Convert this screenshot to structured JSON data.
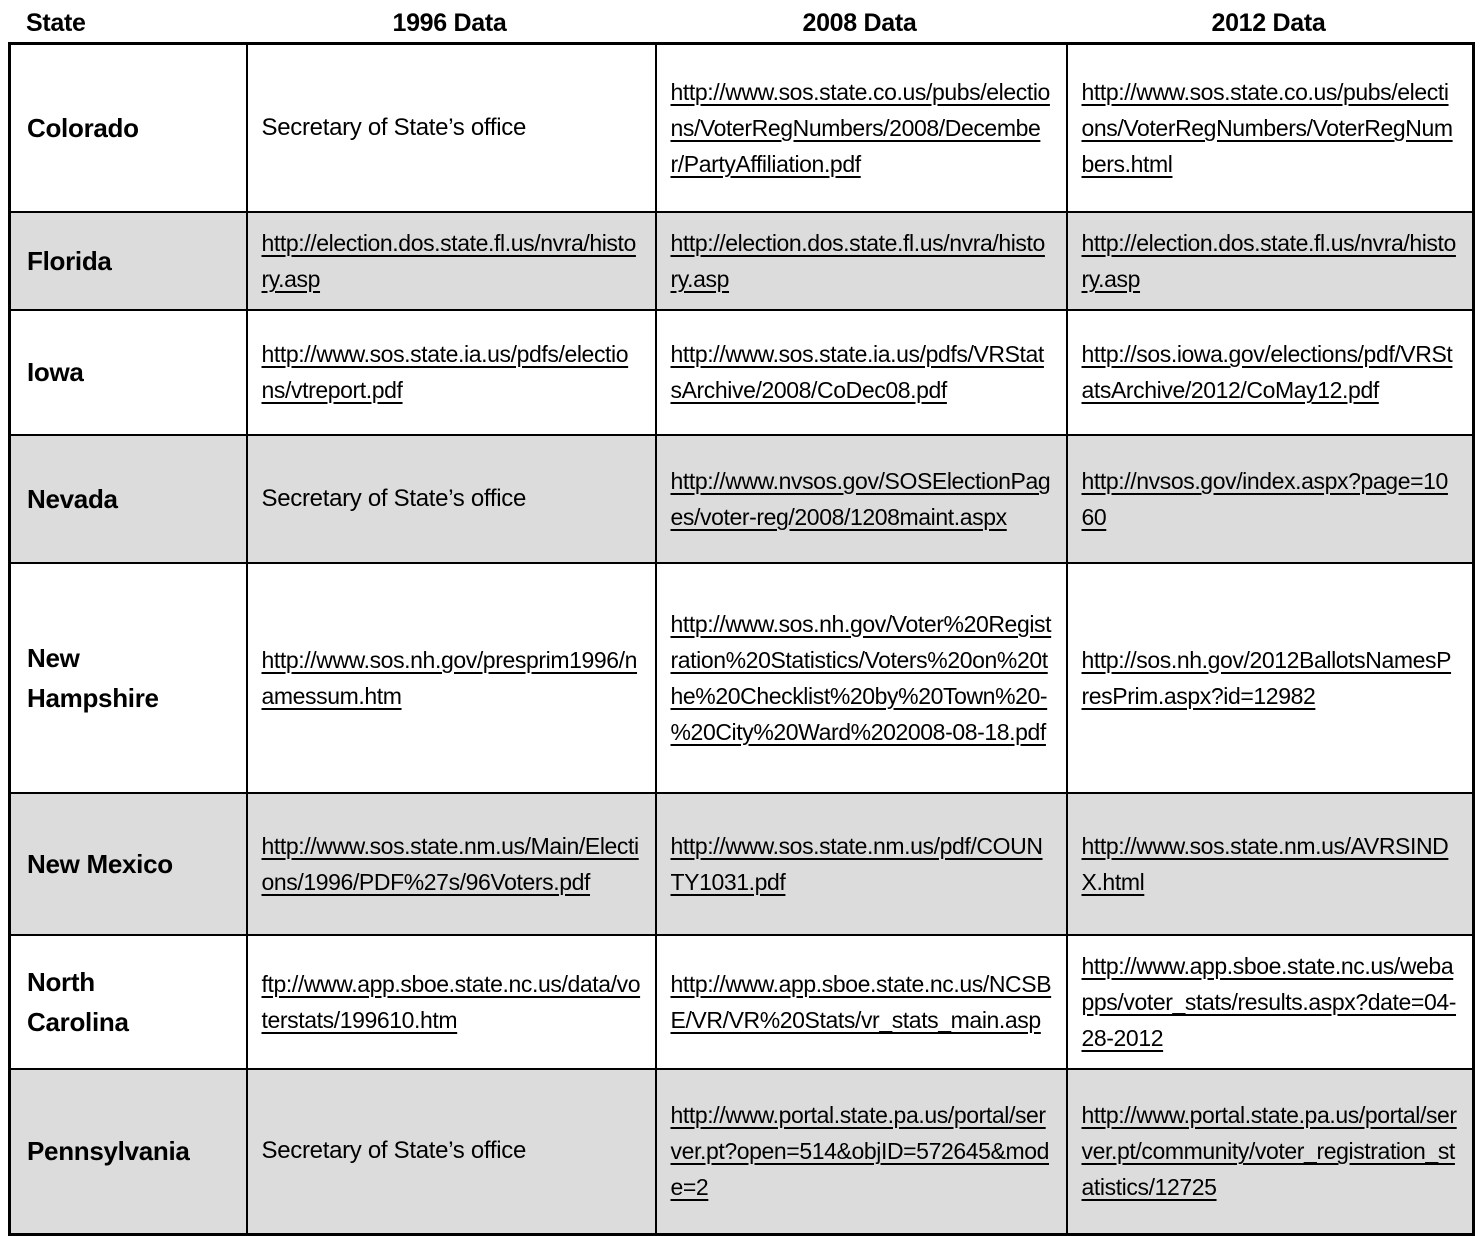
{
  "table": {
    "columns": [
      "State",
      "1996 Data",
      "2008 Data",
      "2012 Data"
    ],
    "rows": [
      {
        "state": "Colorado",
        "cells": [
          "Secretary of State’s office",
          "http://www.sos.state.co.us/pubs/elections/VoterRegNumbers/2008/December/PartyAffiliation.pdf",
          "http://www.sos.state.co.us/pubs/elections/VoterRegNumbers/VoterRegNumbers.html"
        ]
      },
      {
        "state": "Florida",
        "cells": [
          "http://election.dos.state.fl.us/nvra/history.asp",
          "http://election.dos.state.fl.us/nvra/history.asp",
          "http://election.dos.state.fl.us/nvra/history.asp"
        ]
      },
      {
        "state": "Iowa",
        "cells": [
          "http://www.sos.state.ia.us/pdfs/elections/vtreport.pdf",
          "http://www.sos.state.ia.us/pdfs/VRStatsArchive/2008/CoDec08.pdf",
          "http://sos.iowa.gov/elections/pdf/VRStatsArchive/2012/CoMay12.pdf"
        ]
      },
      {
        "state": "Nevada",
        "cells": [
          "Secretary of State’s office",
          "http://www.nvsos.gov/SOSElectionPages/voter-reg/2008/1208maint.aspx",
          "http://nvsos.gov/index.aspx?page=1060"
        ]
      },
      {
        "state": "New Hampshire",
        "cells": [
          "http://www.sos.nh.gov/presprim1996/namessum.htm",
          "http://www.sos.nh.gov/Voter%20Registration%20Statistics/Voters%20on%20the%20Checklist%20by%20Town%20-%20City%20Ward%202008-08-18.pdf",
          "http://sos.nh.gov/2012BallotsNamesPresPrim.aspx?id=12982"
        ]
      },
      {
        "state": "New Mexico",
        "cells": [
          "http://www.sos.state.nm.us/Main/Elections/1996/PDF%27s/96Voters.pdf",
          "http://www.sos.state.nm.us/pdf/COUNTY1031.pdf",
          "http://www.sos.state.nm.us/AVRSINDX.html"
        ]
      },
      {
        "state": "North Carolina",
        "cells": [
          "ftp://www.app.sboe.state.nc.us/data/voterstats/199610.htm",
          "http://www.app.sboe.state.nc.us/NCSBE/VR/VR%20Stats/vr_stats_main.asp",
          "http://www.app.sboe.state.nc.us/webapps/voter_stats/results.aspx?date=04-28-2012"
        ]
      },
      {
        "state": "Pennsylvania",
        "cells": [
          "Secretary of State’s office",
          "http://www.portal.state.pa.us/portal/server.pt?open=514&objID=572645&mode=2",
          "http://www.portal.state.pa.us/portal/server.pt/community/voter_registration_statistics/12725"
        ]
      }
    ]
  }
}
